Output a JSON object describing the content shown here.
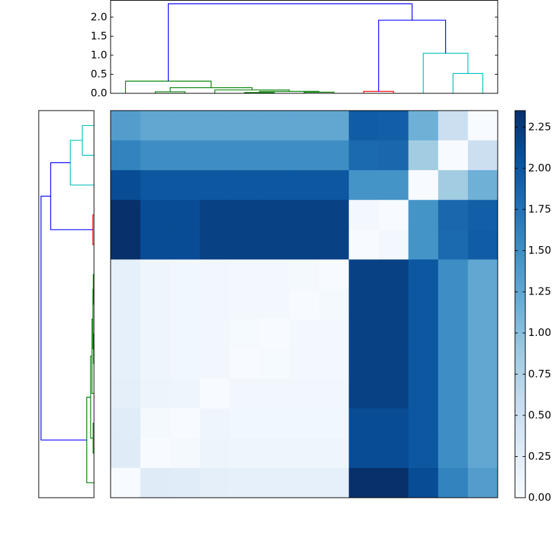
{
  "chart_data": {
    "type": "heatmap",
    "z": [
      [
        1.35,
        1.25,
        1.25,
        1.25,
        1.25,
        1.25,
        1.25,
        1.25,
        1.95,
        1.93,
        1.15,
        0.52,
        0
      ],
      [
        1.6,
        1.5,
        1.5,
        1.5,
        1.5,
        1.5,
        1.5,
        1.5,
        1.83,
        1.85,
        0.85,
        0,
        0.52
      ],
      [
        2.1,
        2.0,
        2.0,
        2.0,
        2.0,
        2.0,
        2.0,
        2.0,
        1.45,
        1.45,
        0,
        0.85,
        1.15
      ],
      [
        2.35,
        2.1,
        2.1,
        2.2,
        2.2,
        2.2,
        2.2,
        2.2,
        0.05,
        0,
        1.45,
        1.85,
        1.93
      ],
      [
        2.35,
        2.1,
        2.1,
        2.2,
        2.2,
        2.2,
        2.2,
        2.2,
        0,
        0.05,
        1.45,
        1.83,
        1.95
      ],
      [
        0.2,
        0.1,
        0.08,
        0.07,
        0.05,
        0.05,
        0.03,
        0,
        2.2,
        2.2,
        2.0,
        1.5,
        1.25
      ],
      [
        0.2,
        0.1,
        0.08,
        0.07,
        0.05,
        0.05,
        0,
        0.03,
        2.2,
        2.2,
        2.0,
        1.5,
        1.25
      ],
      [
        0.2,
        0.1,
        0.08,
        0.07,
        0.02,
        0,
        0.05,
        0.05,
        2.2,
        2.2,
        2.0,
        1.5,
        1.25
      ],
      [
        0.2,
        0.1,
        0.08,
        0.07,
        0,
        0.02,
        0.05,
        0.05,
        2.2,
        2.2,
        2.0,
        1.5,
        1.25
      ],
      [
        0.22,
        0.12,
        0.1,
        0,
        0.07,
        0.07,
        0.07,
        0.07,
        2.2,
        2.2,
        2.0,
        1.5,
        1.25
      ],
      [
        0.27,
        0.04,
        0,
        0.1,
        0.08,
        0.08,
        0.08,
        0.08,
        2.1,
        2.1,
        2.0,
        1.5,
        1.25
      ],
      [
        0.28,
        0,
        0.04,
        0.12,
        0.1,
        0.1,
        0.1,
        0.1,
        2.1,
        2.1,
        2.0,
        1.5,
        1.25
      ],
      [
        0,
        0.28,
        0.27,
        0.22,
        0.2,
        0.2,
        0.2,
        0.2,
        2.35,
        2.35,
        2.1,
        1.6,
        1.35
      ]
    ],
    "zlim": [
      0,
      2.35
    ],
    "cmap": [
      "#f7fbff",
      "#deebf7",
      "#c6dbef",
      "#9ecae1",
      "#6baed6",
      "#4292c6",
      "#2171b5",
      "#08519c",
      "#08306b"
    ],
    "colorbar_ticks": [
      {
        "value": 0,
        "label": "0.00"
      },
      {
        "value": 0.25,
        "label": "0.25"
      },
      {
        "value": 0.5,
        "label": "0.50"
      },
      {
        "value": 0.75,
        "label": "0.75"
      },
      {
        "value": 1,
        "label": "1.00"
      },
      {
        "value": 1.25,
        "label": "1.25"
      },
      {
        "value": 1.5,
        "label": "1.50"
      },
      {
        "value": 1.75,
        "label": "1.75"
      },
      {
        "value": 2,
        "label": "2.00"
      },
      {
        "value": 2.25,
        "label": "2.25"
      }
    ],
    "dendrogram": {
      "xlim": [
        0,
        130
      ],
      "ylim": [
        0,
        2.45
      ],
      "yticks": [
        {
          "value": 0,
          "label": "0.0"
        },
        {
          "value": 0.5,
          "label": "0.5"
        },
        {
          "value": 1,
          "label": "1.0"
        },
        {
          "value": 1.5,
          "label": "1.5"
        },
        {
          "value": 2,
          "label": "2.0"
        }
      ],
      "links": [
        {
          "x": [
            45,
            45,
            55,
            55
          ],
          "y": [
            0,
            0.02,
            0.02,
            0
          ],
          "color": "#008000"
        },
        {
          "x": [
            65,
            65,
            75,
            75
          ],
          "y": [
            0,
            0.03,
            0.03,
            0
          ],
          "color": "#008000"
        },
        {
          "x": [
            50,
            50,
            70,
            70
          ],
          "y": [
            0.02,
            0.05,
            0.05,
            0.03
          ],
          "color": "#008000"
        },
        {
          "x": [
            35,
            35,
            60,
            60
          ],
          "y": [
            0,
            0.09,
            0.09,
            0.05
          ],
          "color": "#008000"
        },
        {
          "x": [
            15,
            15,
            25,
            25
          ],
          "y": [
            0,
            0.04,
            0.04,
            0
          ],
          "color": "#008000"
        },
        {
          "x": [
            20,
            20,
            47.5,
            47.5
          ],
          "y": [
            0.04,
            0.15,
            0.15,
            0.09
          ],
          "color": "#008000"
        },
        {
          "x": [
            5,
            5,
            33.75,
            33.75
          ],
          "y": [
            0,
            0.32,
            0.32,
            0.15
          ],
          "color": "#008000"
        },
        {
          "x": [
            85,
            85,
            95,
            95
          ],
          "y": [
            0,
            0.05,
            0.05,
            0
          ],
          "color": "#ff0000"
        },
        {
          "x": [
            115,
            115,
            125,
            125
          ],
          "y": [
            0,
            0.52,
            0.52,
            0
          ],
          "color": "#00bfbf"
        },
        {
          "x": [
            105,
            105,
            120,
            120
          ],
          "y": [
            0,
            1.05,
            1.05,
            0.52
          ],
          "color": "#00bfbf"
        },
        {
          "x": [
            90,
            90,
            112.5,
            112.5
          ],
          "y": [
            0.05,
            1.92,
            1.92,
            1.05
          ],
          "color": "#0000ff"
        },
        {
          "x": [
            19.375,
            19.375,
            101.25,
            101.25
          ],
          "y": [
            0.32,
            2.35,
            2.35,
            1.92
          ],
          "color": "#0000ff"
        }
      ]
    }
  }
}
